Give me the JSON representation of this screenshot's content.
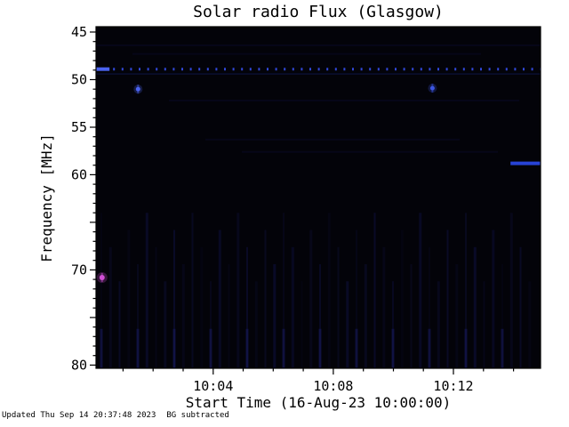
{
  "footer": {
    "updated": "Updated Thu Sep 14 20:37:48 2023",
    "note": "BG subtracted"
  },
  "chart_data": {
    "type": "heatmap",
    "title": "Solar radio Flux (Glasgow)",
    "xlabel": "Start Time (16-Aug-23 10:00:00)",
    "ylabel": "Frequency [MHz]",
    "x_axis": {
      "units": "minutes after 16-Aug-23 10:00:00",
      "range_minutes": [
        0.1,
        14.9
      ],
      "ticks": [
        {
          "minute": 4,
          "label": "10:04"
        },
        {
          "minute": 8,
          "label": "10:08"
        },
        {
          "minute": 12,
          "label": "10:12"
        }
      ],
      "minor_tick_every_minutes": 1
    },
    "y_axis": {
      "range_mhz": [
        44.44,
        80.34
      ],
      "labeled_ticks": [
        45,
        50,
        55,
        60,
        70,
        80
      ],
      "unlabeled_major_ticks": [
        65,
        75
      ],
      "minor_tick_every_mhz": 1,
      "direction": "increasing-downward"
    },
    "plot_bg": "#030309",
    "frame_color": "#000000",
    "features": [
      {
        "kind": "hline-dotted",
        "mhz": 48.9,
        "color": "#3148d8",
        "note": "regular dotted interference line"
      },
      {
        "kind": "hline-faint",
        "mhz": 49.4,
        "color": "#1a2a80"
      },
      {
        "kind": "hseg",
        "m0": 0.1,
        "m1": 0.55,
        "mhz": 48.9,
        "color": "#4b63f0",
        "w": 4
      },
      {
        "kind": "dot",
        "minute": 1.5,
        "mhz": 51.0,
        "color": "#4b63f0",
        "r": 2.5
      },
      {
        "kind": "dot",
        "minute": 11.3,
        "mhz": 50.9,
        "color": "#3b55e0",
        "r": 2.5
      },
      {
        "kind": "dot",
        "minute": 0.3,
        "mhz": 70.8,
        "color": "#cf4fd4",
        "r": 3
      },
      {
        "kind": "hseg",
        "m0": 13.9,
        "m1": 14.9,
        "mhz": 58.8,
        "color": "#2743d6",
        "w": 4
      }
    ],
    "texture": {
      "vertical_striations": true,
      "striation_color": "#12144a",
      "bright_striation_color": "#1a1c66",
      "noise_band_color": "#141455",
      "noise_bands_mhz": [
        46.4,
        47.3,
        52.2,
        56.3,
        57.6
      ]
    }
  }
}
